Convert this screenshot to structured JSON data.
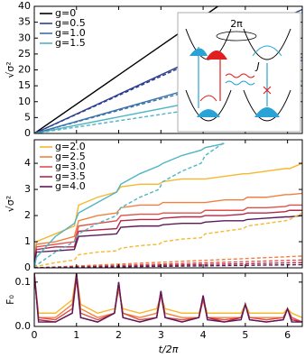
{
  "chart_data": [
    {
      "type": "line",
      "ylabel": "√σ²",
      "ylim": [
        0,
        40
      ],
      "yticks": [
        0,
        5,
        10,
        15,
        20,
        25,
        30,
        35,
        40
      ],
      "xlim": [
        0,
        6.35
      ],
      "xticks": [
        0,
        1,
        2,
        3,
        4,
        5,
        6
      ],
      "annotations": [
        "2π",
        "J"
      ],
      "series": [
        {
          "name": "g=0",
          "color": "#000000",
          "dashed": false,
          "x": [
            0,
            4.35
          ],
          "values": [
            0,
            40
          ]
        },
        {
          "name": "g=0.5",
          "color": "#2b3f8f",
          "dashed": false,
          "x": [
            0,
            6.35
          ],
          "values": [
            0,
            39
          ]
        },
        {
          "name": "g=1.0",
          "color": "#3a70a8",
          "dashed": false,
          "x": [
            0,
            6.35
          ],
          "values": [
            0,
            24
          ]
        },
        {
          "name": "g=1.5",
          "color": "#4fb4c4",
          "dashed": false,
          "x": [
            0,
            6.35
          ],
          "values": [
            0,
            16.5
          ]
        },
        {
          "name": null,
          "color": "#2b3f8f",
          "dashed": true,
          "x": [
            0,
            6.35
          ],
          "values": [
            0,
            38
          ]
        },
        {
          "name": null,
          "color": "#3a70a8",
          "dashed": true,
          "x": [
            0,
            6.35
          ],
          "values": [
            0,
            23
          ]
        },
        {
          "name": null,
          "color": "#4fb4c4",
          "dashed": true,
          "x": [
            0,
            6.35
          ],
          "values": [
            0,
            12.7
          ]
        }
      ]
    },
    {
      "type": "line",
      "ylabel": "√σ²",
      "ylim": [
        0,
        4.9
      ],
      "yticks": [
        0,
        1,
        2,
        3,
        4
      ],
      "xlim": [
        0,
        6.35
      ],
      "xticks": [
        0,
        1,
        2,
        3,
        4,
        5,
        6
      ],
      "x": [
        0,
        0.05,
        0.5,
        0.95,
        1.05,
        1.5,
        1.95,
        2.05,
        2.5,
        2.95,
        3.05,
        3.5,
        3.95,
        4.05,
        4.5,
        4.95,
        5.05,
        5.5,
        5.95,
        6.05,
        6.35
      ],
      "series": [
        {
          "name": "g=2.0",
          "color": "#f5b82e",
          "dashed": false,
          "values": [
            0,
            1.0,
            1.3,
            1.6,
            2.4,
            2.7,
            2.9,
            3.1,
            3.2,
            3.2,
            3.3,
            3.4,
            3.4,
            3.4,
            3.5,
            3.6,
            3.6,
            3.7,
            3.8,
            3.8,
            4.0
          ]
        },
        {
          "name": "g=2.5",
          "color": "#f08040",
          "dashed": false,
          "values": [
            0,
            0.9,
            1.0,
            1.2,
            1.8,
            2.0,
            2.1,
            2.3,
            2.4,
            2.4,
            2.5,
            2.5,
            2.5,
            2.5,
            2.6,
            2.6,
            2.7,
            2.7,
            2.8,
            2.8,
            2.85
          ]
        },
        {
          "name": "g=3.0",
          "color": "#e0504a",
          "dashed": false,
          "values": [
            0,
            0.8,
            0.9,
            1.0,
            1.6,
            1.7,
            1.8,
            2.0,
            2.05,
            2.05,
            2.1,
            2.1,
            2.1,
            2.2,
            2.2,
            2.2,
            2.3,
            2.3,
            2.35,
            2.4,
            2.4
          ]
        },
        {
          "name": "g=3.5",
          "color": "#b0284a",
          "dashed": false,
          "values": [
            0,
            0.7,
            0.8,
            0.8,
            1.4,
            1.45,
            1.5,
            1.8,
            1.85,
            1.85,
            1.9,
            1.95,
            1.95,
            2.0,
            2.0,
            2.05,
            2.1,
            2.1,
            2.15,
            2.2,
            2.2
          ]
        },
        {
          "name": "g=4.0",
          "color": "#5a1a5a",
          "dashed": false,
          "values": [
            0,
            0.6,
            0.65,
            0.7,
            1.2,
            1.25,
            1.3,
            1.55,
            1.6,
            1.6,
            1.65,
            1.7,
            1.7,
            1.75,
            1.8,
            1.8,
            1.85,
            1.9,
            1.95,
            1.95,
            2.0
          ]
        },
        {
          "name": null,
          "color": "#4fb4c4",
          "dashed": false,
          "values": [
            0,
            0.4,
            1.2,
            1.7,
            2.1,
            2.5,
            2.9,
            3.2,
            3.6,
            3.9,
            4.0,
            4.3,
            4.5,
            4.6,
            4.75,
            null,
            null,
            null,
            null,
            null,
            null
          ]
        },
        {
          "name": null,
          "color": "#4fb4c4",
          "dashed": true,
          "values": [
            0,
            0.1,
            0.6,
            1.0,
            1.3,
            1.7,
            2.0,
            2.3,
            2.7,
            3.0,
            3.3,
            3.7,
            4.0,
            4.3,
            4.8,
            null,
            null,
            null,
            null,
            null,
            null
          ]
        },
        {
          "name": null,
          "color": "#f5b82e",
          "dashed": true,
          "values": [
            0,
            0.05,
            0.2,
            0.3,
            0.5,
            0.6,
            0.65,
            0.75,
            0.85,
            0.9,
            1.0,
            1.1,
            1.15,
            1.3,
            1.4,
            1.5,
            1.6,
            1.7,
            1.8,
            1.85,
            2.1
          ]
        },
        {
          "name": null,
          "color": "#f08040",
          "dashed": true,
          "x": [
            0,
            6.35
          ],
          "values": [
            0,
            0.45
          ]
        },
        {
          "name": null,
          "color": "#e0504a",
          "dashed": true,
          "x": [
            0,
            6.35
          ],
          "values": [
            0,
            0.3
          ]
        },
        {
          "name": null,
          "color": "#b0284a",
          "dashed": true,
          "x": [
            0,
            6.35
          ],
          "values": [
            0,
            0.2
          ]
        },
        {
          "name": null,
          "color": "#5a1a5a",
          "dashed": true,
          "x": [
            0,
            6.35
          ],
          "values": [
            0,
            0.12
          ]
        }
      ]
    },
    {
      "type": "line",
      "ylabel": "F₀",
      "xlabel": "t/2π",
      "ylim": [
        0,
        0.12
      ],
      "yticks": [
        {
          "value": 0,
          "label": "0.0"
        },
        0.1
      ],
      "xlim": [
        0,
        6.35
      ],
      "xticks": [
        0,
        1,
        2,
        3,
        4,
        5,
        6
      ],
      "x": [
        0,
        0.1,
        0.5,
        0.9,
        1,
        1.1,
        1.5,
        1.9,
        2,
        2.1,
        2.5,
        2.9,
        3,
        3.1,
        3.5,
        3.9,
        4,
        4.1,
        4.5,
        4.9,
        5,
        5.1,
        5.5,
        5.9,
        6,
        6.1,
        6.35
      ],
      "series": [
        {
          "name": null,
          "color": "#f5b82e",
          "dashed": false,
          "values": [
            0.12,
            0.03,
            0.03,
            0.06,
            0.12,
            0.05,
            0.03,
            0.04,
            0.08,
            0.04,
            0.03,
            0.04,
            0.07,
            0.04,
            0.03,
            0.03,
            0.06,
            0.03,
            0.03,
            0.03,
            0.05,
            0.03,
            0.03,
            0.03,
            0.04,
            0.03,
            0.02
          ]
        },
        {
          "name": null,
          "color": "#f08040",
          "dashed": false,
          "values": [
            0.12,
            0.02,
            0.02,
            0.05,
            0.12,
            0.04,
            0.02,
            0.03,
            0.09,
            0.03,
            0.02,
            0.03,
            0.07,
            0.03,
            0.02,
            0.02,
            0.06,
            0.02,
            0.02,
            0.02,
            0.05,
            0.02,
            0.02,
            0.02,
            0.04,
            0.02,
            0.01
          ]
        },
        {
          "name": null,
          "color": "#e0504a",
          "dashed": false,
          "values": [
            0.12,
            0.02,
            0.015,
            0.04,
            0.11,
            0.03,
            0.015,
            0.03,
            0.09,
            0.03,
            0.015,
            0.02,
            0.07,
            0.02,
            0.015,
            0.02,
            0.06,
            0.02,
            0.015,
            0.02,
            0.05,
            0.02,
            0.015,
            0.02,
            0.04,
            0.02,
            0.01
          ]
        },
        {
          "name": null,
          "color": "#b0284a",
          "dashed": false,
          "values": [
            0.12,
            0.015,
            0.01,
            0.03,
            0.11,
            0.02,
            0.01,
            0.03,
            0.1,
            0.02,
            0.01,
            0.02,
            0.08,
            0.02,
            0.01,
            0.02,
            0.07,
            0.02,
            0.01,
            0.02,
            0.05,
            0.015,
            0.01,
            0.015,
            0.04,
            0.015,
            0.01
          ]
        },
        {
          "name": null,
          "color": "#5a1a5a",
          "dashed": false,
          "values": [
            0.12,
            0.01,
            0.01,
            0.03,
            0.12,
            0.02,
            0.01,
            0.03,
            0.1,
            0.02,
            0.01,
            0.02,
            0.08,
            0.02,
            0.01,
            0.02,
            0.07,
            0.015,
            0.01,
            0.015,
            0.05,
            0.015,
            0.01,
            0.015,
            0.04,
            0.01,
            0.01
          ]
        }
      ]
    }
  ]
}
